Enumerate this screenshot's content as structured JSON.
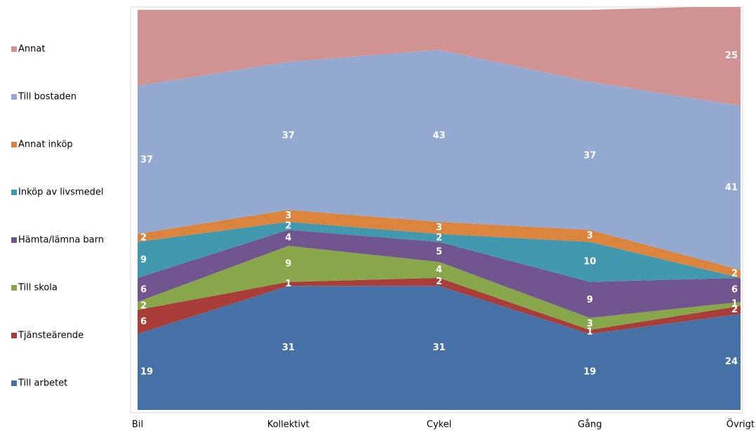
{
  "chart_data": {
    "type": "stacked_area",
    "categories": [
      "Bil",
      "Kollektivt",
      "Cykel",
      "Gång",
      "Övrigt"
    ],
    "ylim": [
      0,
      100
    ],
    "series": [
      {
        "name": "Till arbetet",
        "color": "#4571a7",
        "values": [
          19,
          31,
          31,
          19,
          24
        ]
      },
      {
        "name": "Tjänsteärende",
        "color": "#a93d3a",
        "values": [
          6,
          1,
          2,
          1,
          2
        ]
      },
      {
        "name": "Till skola",
        "color": "#88a64a",
        "values": [
          2,
          9,
          4,
          3,
          1
        ]
      },
      {
        "name": "Hämta/lämna barn",
        "color": "#71558f",
        "values": [
          6,
          4,
          5,
          9,
          6
        ]
      },
      {
        "name": "Inköp av livsmedel",
        "color": "#4198af",
        "values": [
          9,
          2,
          2,
          10,
          0
        ]
      },
      {
        "name": "Annat inköp",
        "color": "#db843d",
        "values": [
          2,
          3,
          3,
          3,
          2
        ]
      },
      {
        "name": "Till bostaden",
        "color": "#93a9d0",
        "values": [
          37,
          37,
          43,
          37,
          41
        ]
      },
      {
        "name": "Annat",
        "color": "#d09392",
        "values": [
          19,
          13,
          10,
          18,
          25
        ],
        "value_labels": [
          null,
          null,
          null,
          null,
          "25"
        ]
      }
    ]
  }
}
